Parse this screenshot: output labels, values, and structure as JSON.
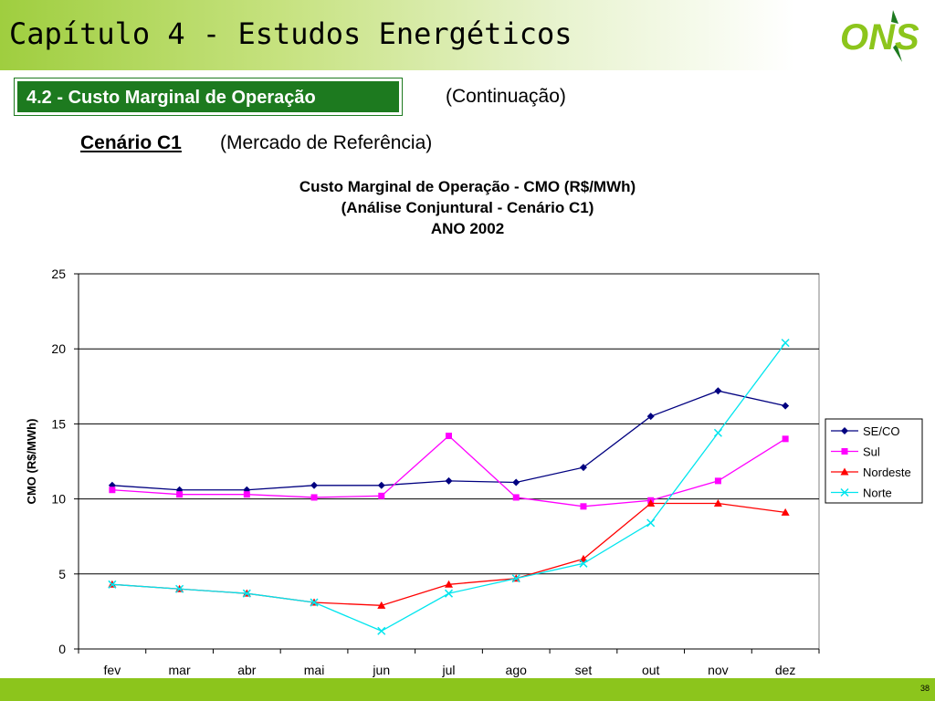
{
  "header": {
    "title": "Capítulo 4 - Estudos Energéticos",
    "logo_text": "ONS"
  },
  "section": {
    "label": "4.2 - Custo Marginal de Operação",
    "continuation": "(Continuação)"
  },
  "scenario": {
    "label": "Cenário C1",
    "description": "(Mercado de Referência)"
  },
  "footer": {
    "page_number": "38"
  },
  "colors": {
    "header_green": "#9fce3f",
    "section_green": "#1d7a1f",
    "footer_green": "#8cc51c"
  },
  "chart_data": {
    "type": "line",
    "title": [
      "Custo Marginal de Operação - CMO (R$/MWh)",
      "(Análise Conjuntural - Cenário C1)",
      "ANO 2002"
    ],
    "xlabel": "",
    "ylabel": "CMO (R$/MWh)",
    "ylim": [
      0,
      25
    ],
    "yticks": [
      "0",
      "5",
      "10",
      "15",
      "20",
      "25"
    ],
    "grid": true,
    "legend_position": "right",
    "categories": [
      "fev",
      "mar",
      "abr",
      "mai",
      "jun",
      "jul",
      "ago",
      "set",
      "out",
      "nov",
      "dez"
    ],
    "series": [
      {
        "name": "SE/CO",
        "color": "#000080",
        "marker": "diamond",
        "values": [
          10.9,
          10.6,
          10.6,
          10.9,
          10.9,
          11.2,
          11.1,
          12.1,
          15.5,
          17.2,
          16.2
        ]
      },
      {
        "name": "Sul",
        "color": "#ff00ff",
        "marker": "square",
        "values": [
          10.6,
          10.3,
          10.3,
          10.1,
          10.2,
          14.2,
          10.1,
          9.5,
          9.9,
          11.2,
          14.0
        ]
      },
      {
        "name": "Nordeste",
        "color": "#ff0000",
        "marker": "triangle",
        "values": [
          4.3,
          4.0,
          3.7,
          3.1,
          2.9,
          4.3,
          4.7,
          6.0,
          9.7,
          9.7,
          9.1
        ]
      },
      {
        "name": "Norte",
        "color": "#00e5ee",
        "marker": "x",
        "values": [
          4.3,
          4.0,
          3.7,
          3.1,
          1.2,
          3.7,
          4.7,
          5.7,
          8.4,
          14.4,
          20.4
        ]
      }
    ]
  }
}
